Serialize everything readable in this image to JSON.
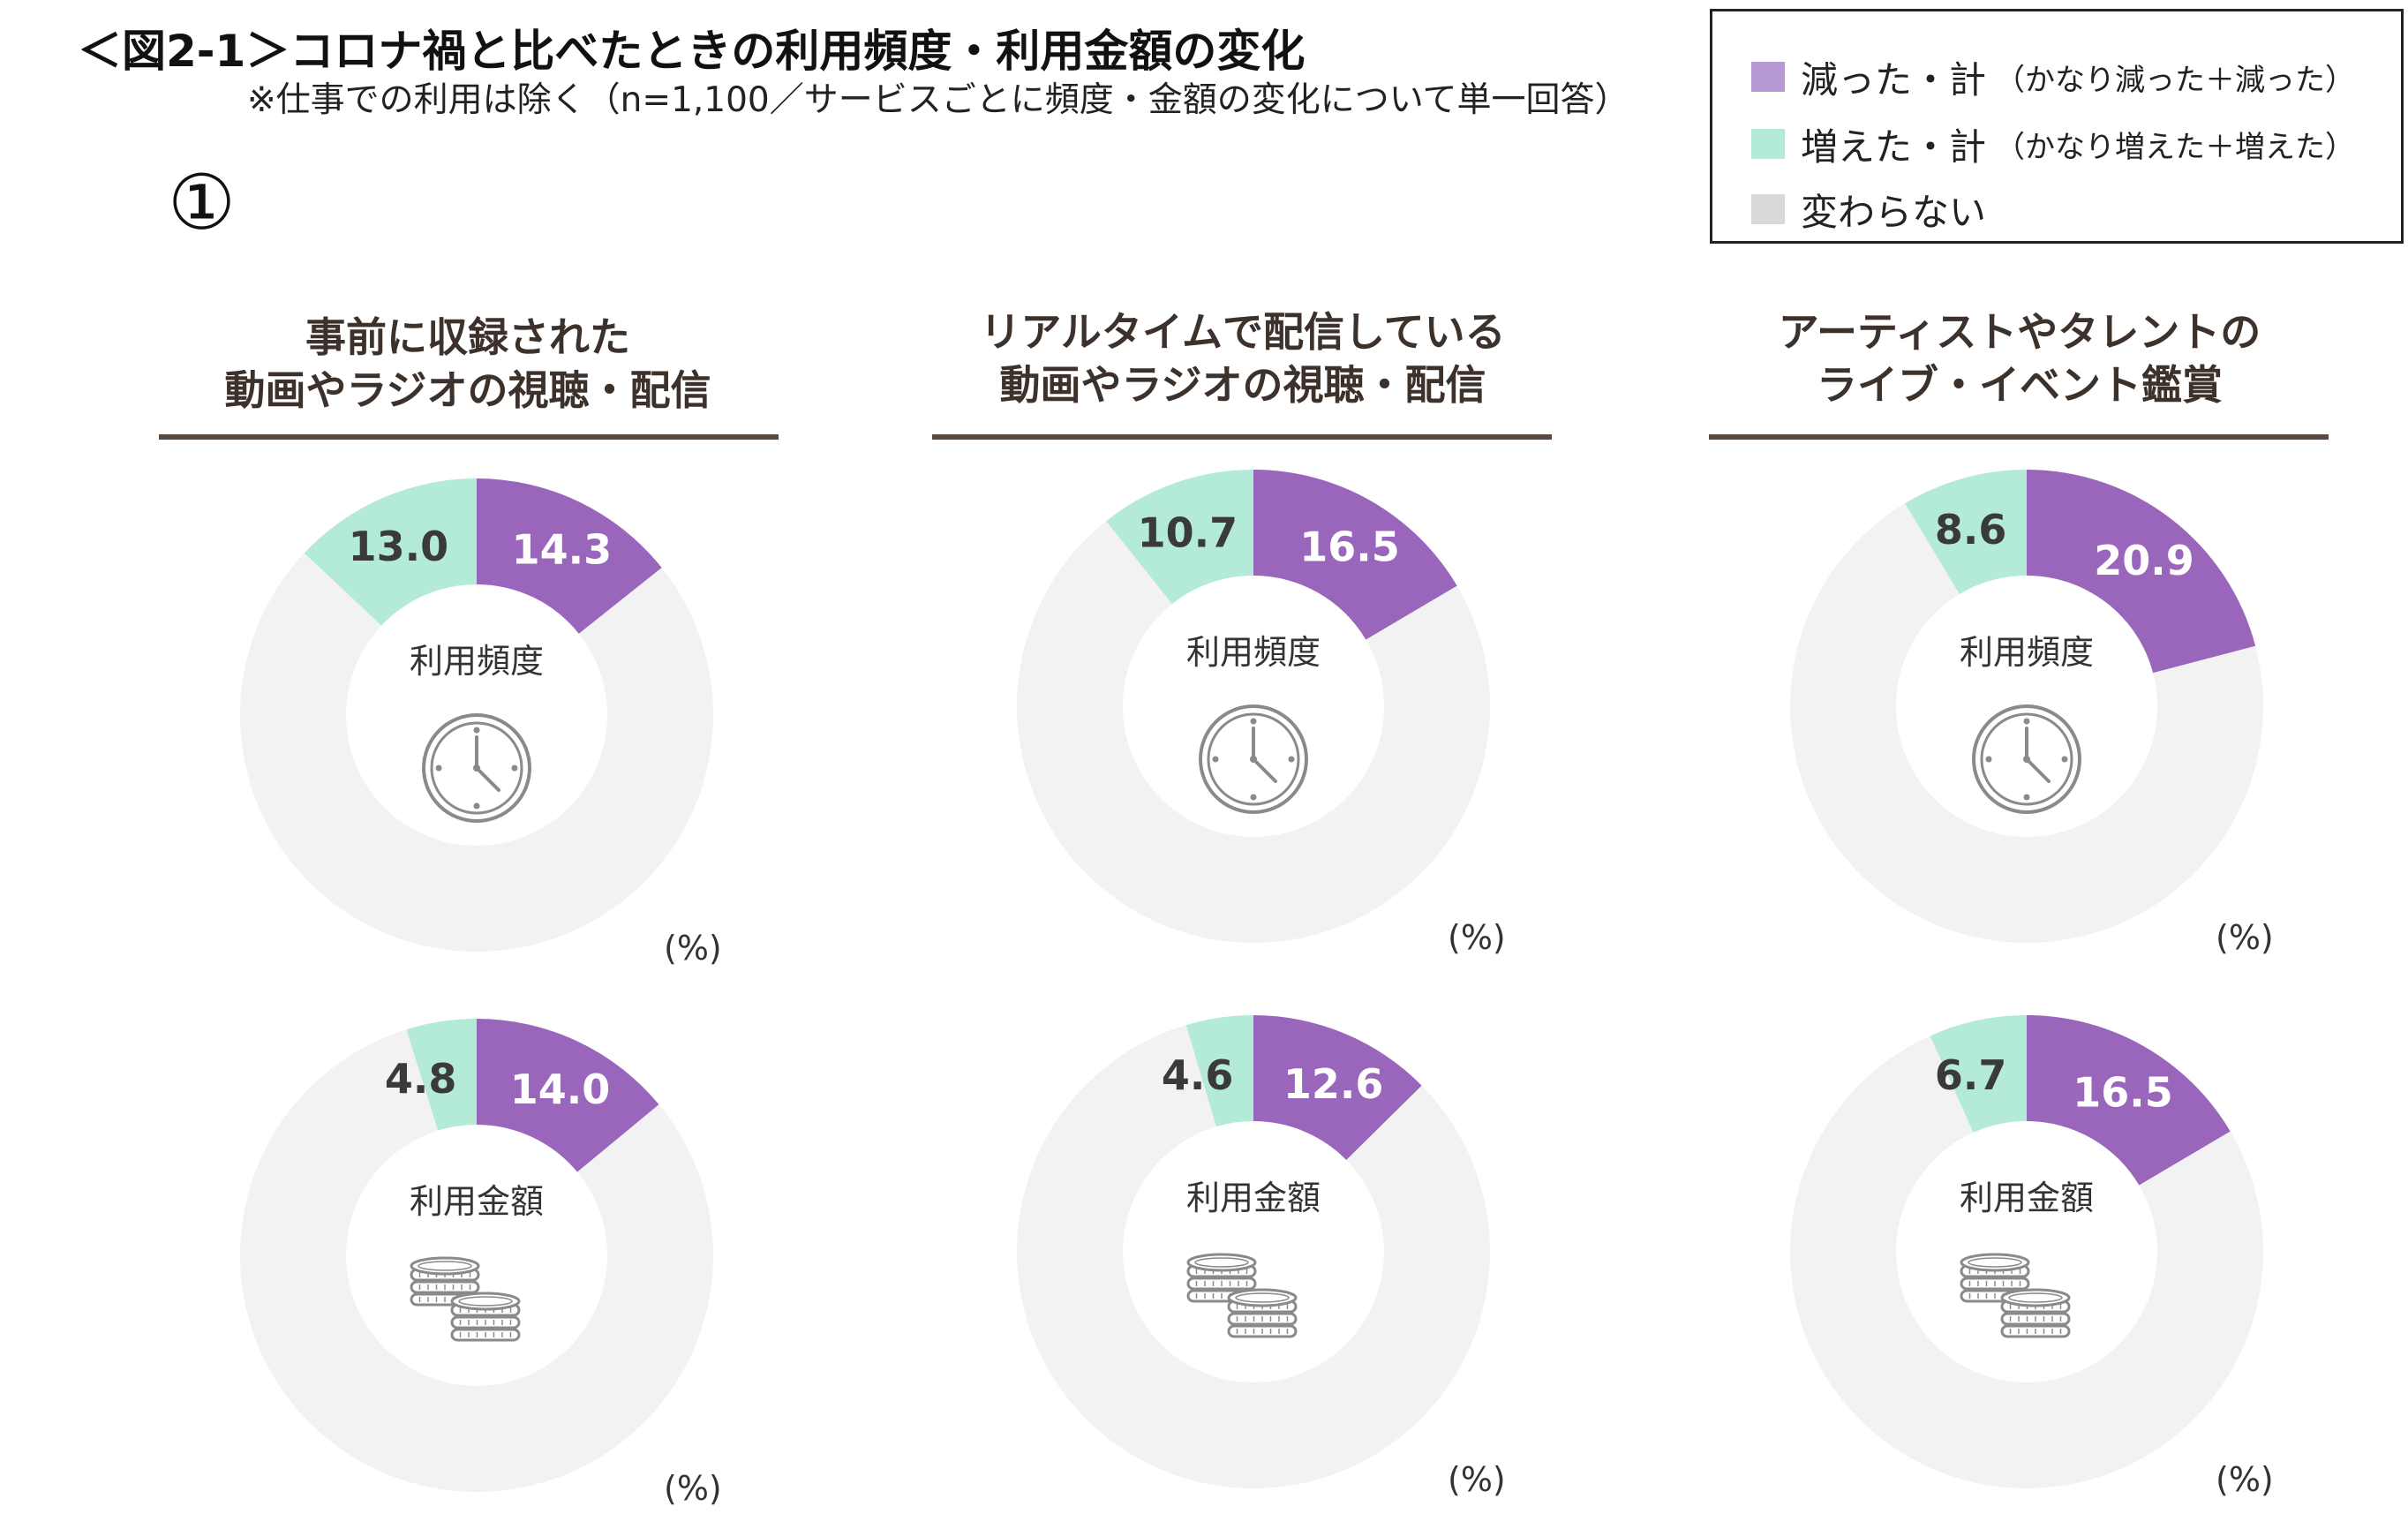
{
  "header": {
    "title": "＜図2-1＞コロナ禍と比べたときの利用頻度・利用金額の変化",
    "subtitle": "※仕事での利用は除く（n=1,100／サービスごとに頻度・金額の変化について単一回答）",
    "panel_label": "①"
  },
  "legend": {
    "items": [
      {
        "label": "減った・計",
        "note": "（かなり減った＋減った）",
        "color": "#b59ad4"
      },
      {
        "label": "増えた・計",
        "note": "（かなり増えた＋増えた）",
        "color": "#b3ead8"
      },
      {
        "label": "変わらない",
        "note": "",
        "color": "#d9d9d9"
      }
    ]
  },
  "columns": [
    {
      "title_line1": "事前に収録された",
      "title_line2": "動画やラジオの視聴・配信"
    },
    {
      "title_line1": "リアルタイムで配信している",
      "title_line2": "動画やラジオの視聴・配信"
    },
    {
      "title_line1": "アーティストやタレントの",
      "title_line2": "ライブ・イベント鑑賞"
    }
  ],
  "unit_label": "(%)",
  "colors": {
    "decreased": "#9966bb",
    "increased": "#b3ead8",
    "unchanged": "#f2f2f2",
    "label": "#3a3a3a",
    "icon": "#8a8a8a"
  },
  "chart_data": [
    {
      "type": "pie",
      "column": "事前に収録された動画やラジオの視聴・配信",
      "center_label": "利用頻度",
      "icon": "clock-icon",
      "slices": [
        {
          "name": "減った・計",
          "value": 14.3
        },
        {
          "name": "増えた・計",
          "value": 13.0
        },
        {
          "name": "変わらない",
          "value": 72.7
        }
      ],
      "labels": [
        "14.3",
        "13.0"
      ]
    },
    {
      "type": "pie",
      "column": "リアルタイムで配信している動画やラジオの視聴・配信",
      "center_label": "利用頻度",
      "icon": "clock-icon",
      "slices": [
        {
          "name": "減った・計",
          "value": 16.5
        },
        {
          "name": "増えた・計",
          "value": 10.7
        },
        {
          "name": "変わらない",
          "value": 72.8
        }
      ],
      "labels": [
        "16.5",
        "10.7"
      ]
    },
    {
      "type": "pie",
      "column": "アーティストやタレントのライブ・イベント鑑賞",
      "center_label": "利用頻度",
      "icon": "clock-icon",
      "slices": [
        {
          "name": "減った・計",
          "value": 20.9
        },
        {
          "name": "増えた・計",
          "value": 8.6
        },
        {
          "name": "変わらない",
          "value": 70.5
        }
      ],
      "labels": [
        "20.9",
        "8.6"
      ]
    },
    {
      "type": "pie",
      "column": "事前に収録された動画やラジオの視聴・配信",
      "center_label": "利用金額",
      "icon": "coins-icon",
      "slices": [
        {
          "name": "減った・計",
          "value": 14.0
        },
        {
          "name": "増えた・計",
          "value": 4.8
        },
        {
          "name": "変わらない",
          "value": 81.2
        }
      ],
      "labels": [
        "14.0",
        "4.8"
      ]
    },
    {
      "type": "pie",
      "column": "リアルタイムで配信している動画やラジオの視聴・配信",
      "center_label": "利用金額",
      "icon": "coins-icon",
      "slices": [
        {
          "name": "減った・計",
          "value": 12.6
        },
        {
          "name": "増えた・計",
          "value": 4.6
        },
        {
          "name": "変わらない",
          "value": 82.8
        }
      ],
      "labels": [
        "12.6",
        "4.6"
      ]
    },
    {
      "type": "pie",
      "column": "アーティストやタレントのライブ・イベント鑑賞",
      "center_label": "利用金額",
      "icon": "coins-icon",
      "slices": [
        {
          "name": "減った・計",
          "value": 16.5
        },
        {
          "name": "増えた・計",
          "value": 6.7
        },
        {
          "name": "変わらない",
          "value": 76.8
        }
      ],
      "labels": [
        "16.5",
        "6.7"
      ]
    }
  ]
}
